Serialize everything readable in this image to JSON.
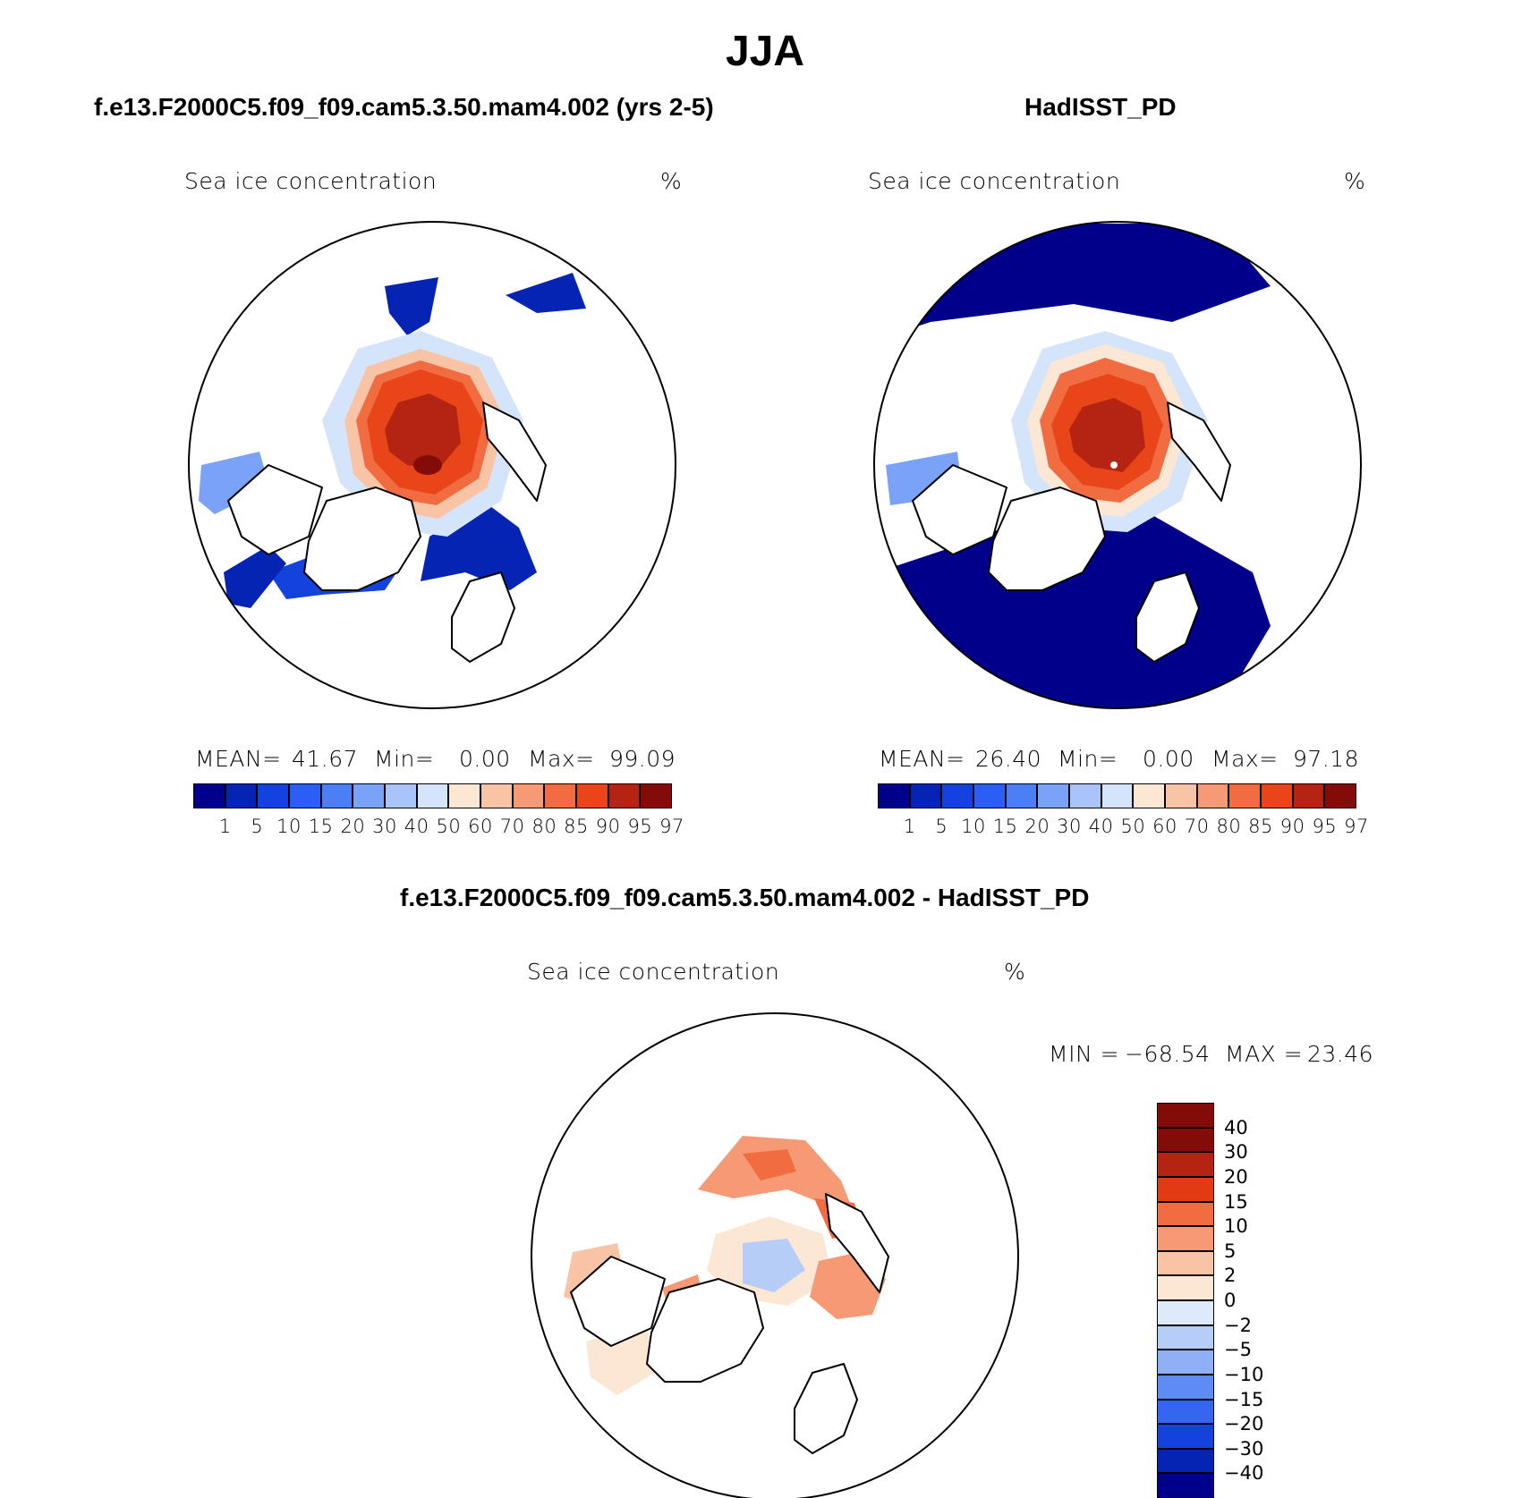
{
  "figure": {
    "title": "JJA"
  },
  "panels": {
    "model": {
      "title": "f.e13.F2000C5.f09_f09.cam5.3.50.mam4.002 (yrs 2-5)",
      "variable": "Sea ice concentration",
      "units": "%",
      "mean_label": "MEAN=",
      "mean": "41.67",
      "min_label": "Min=",
      "min": "0.00",
      "max_label": "Max=",
      "max": "99.09"
    },
    "obs": {
      "title": "HadISST_PD",
      "variable": "Sea ice concentration",
      "units": "%",
      "mean_label": "MEAN=",
      "mean": "26.40",
      "min_label": "Min=",
      "min": "0.00",
      "max_label": "Max=",
      "max": "97.18"
    },
    "diff": {
      "title": "f.e13.F2000C5.f09_f09.cam5.3.50.mam4.002 - HadISST_PD",
      "variable": "Sea ice concentration",
      "units": "%",
      "min_label": "MIN =",
      "min": "−68.54",
      "max_label": "MAX =",
      "max": "23.46"
    }
  },
  "colorbars": {
    "absolute": {
      "levels": [
        "1",
        "5",
        "10",
        "15",
        "20",
        "30",
        "40",
        "50",
        "60",
        "70",
        "80",
        "85",
        "90",
        "95",
        "97"
      ],
      "colors": [
        "#00008b",
        "#0624b4",
        "#1442dc",
        "#2a5ef5",
        "#4c7ff5",
        "#7aa2f7",
        "#a9c4f9",
        "#d4e5fb",
        "#fce6d4",
        "#f9c4a6",
        "#f59a74",
        "#f26c42",
        "#e84618",
        "#b52412",
        "#840c08"
      ]
    },
    "difference": {
      "levels": [
        "40",
        "30",
        "20",
        "15",
        "10",
        "5",
        "2",
        "0",
        "−2",
        "−5",
        "−10",
        "−15",
        "−20",
        "−30",
        "−40"
      ],
      "colors": [
        "#840c08",
        "#b52412",
        "#e23a12",
        "#f26c42",
        "#f59a74",
        "#f9c4a6",
        "#fce6d4",
        "#ddeaf9",
        "#b6cdf8",
        "#8eb0f6",
        "#5d8cf4",
        "#3466f2",
        "#1442dc",
        "#0624b4",
        "#00008b"
      ]
    }
  }
}
